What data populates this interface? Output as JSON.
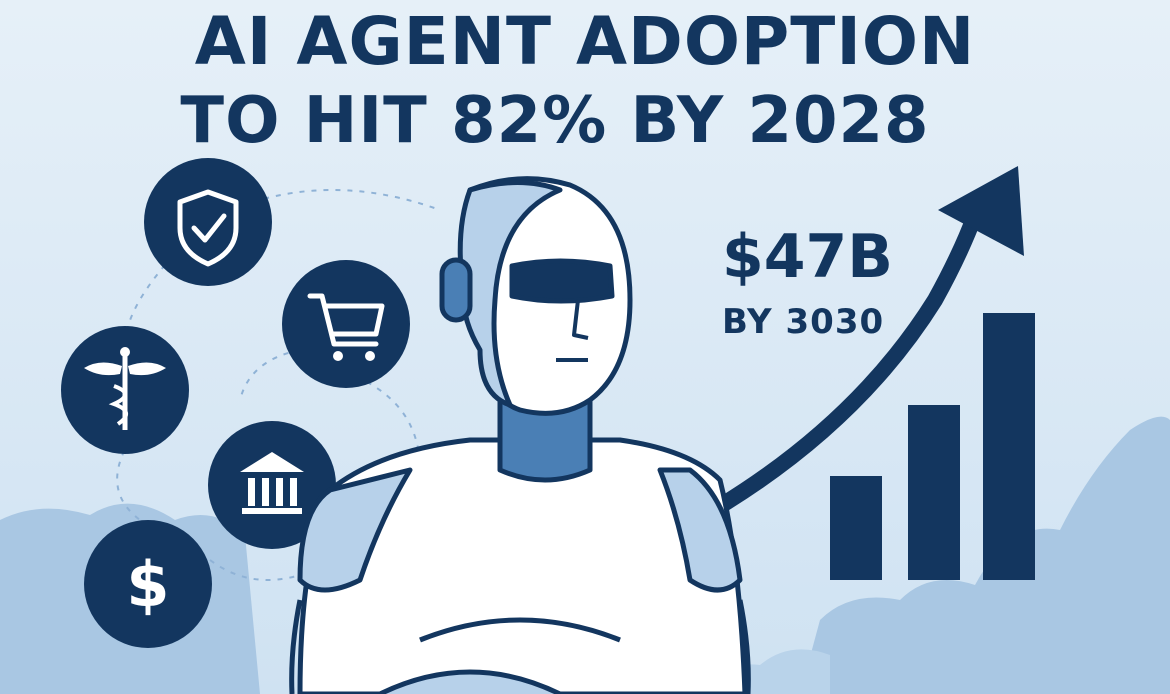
{
  "headline": {
    "line1": "AI AGENT ADOPTION",
    "line2": "TO HIT 82% BY 2028"
  },
  "stat": {
    "value": "$47B",
    "caption": "BY 3030"
  },
  "icons": [
    "shield-check-icon",
    "shopping-cart-icon",
    "caduceus-icon",
    "bank-icon",
    "dollar-icon"
  ],
  "colors": {
    "navy": "#13365f",
    "background": "#dcebf6",
    "cloud": "#9fc0e0",
    "robot_shade": "#b7d1ea",
    "robot_neck": "#4a7fb5"
  }
}
